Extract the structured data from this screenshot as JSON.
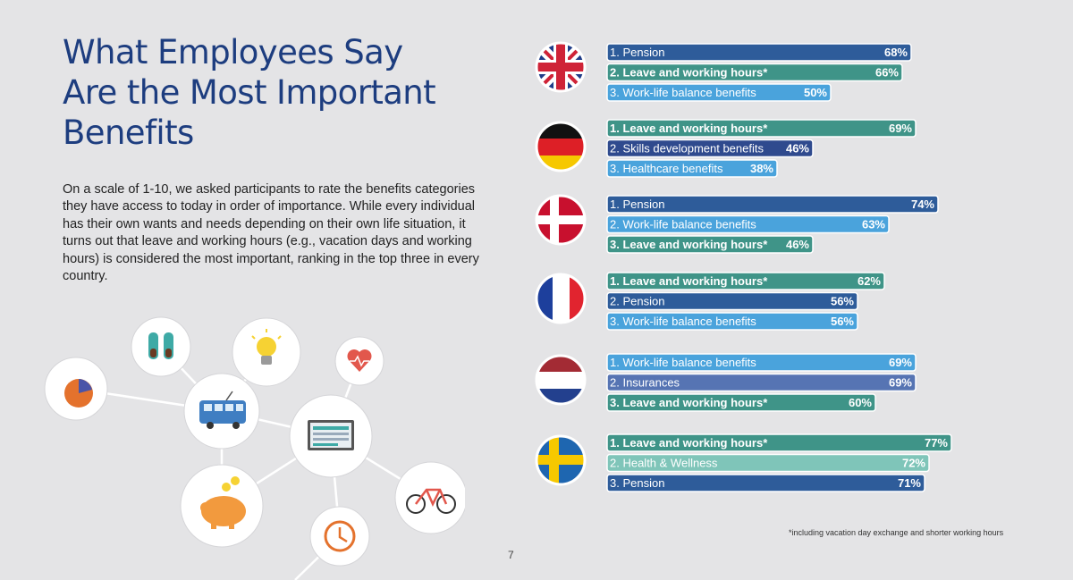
{
  "page": {
    "title_lines": [
      "What Employees Say",
      "Are the Most Important",
      "Benefits"
    ],
    "intro": "On a scale of 1-10, we asked participants to rate the benefits categories they have access to today in order of importance. While every individual has their own wants and needs depending on their own life situation, it turns out that leave and working hours (e.g., vacation days and working hours) is considered the most important, ranking in the top three in every country.",
    "footnote": "*including vacation day exchange and shorter working hours",
    "page_number": "7"
  },
  "colors": {
    "pension": "#2e5c9a",
    "leave": "#3f9488",
    "worklife": "#4aa3dc",
    "skills": "#2f4a8e",
    "healthcare": "#4aa3dc",
    "insurances": "#5674b3",
    "wellness": "#7fc5b9"
  },
  "illustration": {
    "icons": [
      "pie-chart-icon",
      "sneakers-icon",
      "lightbulb-icon",
      "heart-rate-icon",
      "bus-icon",
      "screen-icon",
      "piggy-bank-icon",
      "clock-icon",
      "bicycle-icon"
    ]
  },
  "chart_data": {
    "type": "bar",
    "orientation": "horizontal",
    "xlim": [
      0,
      100
    ],
    "groups": [
      {
        "flag": "uk-flag-icon",
        "bars": [
          {
            "label": "1. Pension",
            "value": 68,
            "value_label": "68%",
            "color_key": "pension",
            "bold": false
          },
          {
            "label": "2. Leave and working hours*",
            "value": 66,
            "value_label": "66%",
            "color_key": "leave",
            "bold": true
          },
          {
            "label": "3. Work-life balance benefits",
            "value": 50,
            "value_label": "50%",
            "color_key": "worklife",
            "bold": false
          }
        ]
      },
      {
        "flag": "germany-flag-icon",
        "bars": [
          {
            "label": "1. Leave and working hours*",
            "value": 69,
            "value_label": "69%",
            "color_key": "leave",
            "bold": true
          },
          {
            "label": "2. Skills development benefits",
            "value": 46,
            "value_label": "46%",
            "color_key": "skills",
            "bold": false
          },
          {
            "label": "3. Healthcare benefits",
            "value": 38,
            "value_label": "38%",
            "color_key": "healthcare",
            "bold": false
          }
        ]
      },
      {
        "flag": "denmark-flag-icon",
        "bars": [
          {
            "label": "1. Pension",
            "value": 74,
            "value_label": "74%",
            "color_key": "pension",
            "bold": false
          },
          {
            "label": "2. Work-life balance benefits",
            "value": 63,
            "value_label": "63%",
            "color_key": "worklife",
            "bold": false
          },
          {
            "label": "3. Leave and working hours*",
            "value": 46,
            "value_label": "46%",
            "color_key": "leave",
            "bold": true
          }
        ]
      },
      {
        "flag": "france-flag-icon",
        "bars": [
          {
            "label": "1. Leave and working hours*",
            "value": 62,
            "value_label": "62%",
            "color_key": "leave",
            "bold": true
          },
          {
            "label": "2. Pension",
            "value": 56,
            "value_label": "56%",
            "color_key": "pension",
            "bold": false
          },
          {
            "label": "3. Work-life balance benefits",
            "value": 56,
            "value_label": "56%",
            "color_key": "worklife",
            "bold": false
          }
        ]
      },
      {
        "flag": "netherlands-flag-icon",
        "bars": [
          {
            "label": "1. Work-life balance benefits",
            "value": 69,
            "value_label": "69%",
            "color_key": "worklife",
            "bold": false
          },
          {
            "label": "2. Insurances",
            "value": 69,
            "value_label": "69%",
            "color_key": "insurances",
            "bold": false
          },
          {
            "label": "3. Leave and working hours*",
            "value": 60,
            "value_label": "60%",
            "color_key": "leave",
            "bold": true
          }
        ]
      },
      {
        "flag": "sweden-flag-icon",
        "bars": [
          {
            "label": "1. Leave and working hours*",
            "value": 77,
            "value_label": "77%",
            "color_key": "leave",
            "bold": true
          },
          {
            "label": "2. Health & Wellness",
            "value": 72,
            "value_label": "72%",
            "color_key": "wellness",
            "bold": false
          },
          {
            "label": "3. Pension",
            "value": 71,
            "value_label": "71%",
            "color_key": "pension",
            "bold": false
          }
        ]
      }
    ]
  }
}
